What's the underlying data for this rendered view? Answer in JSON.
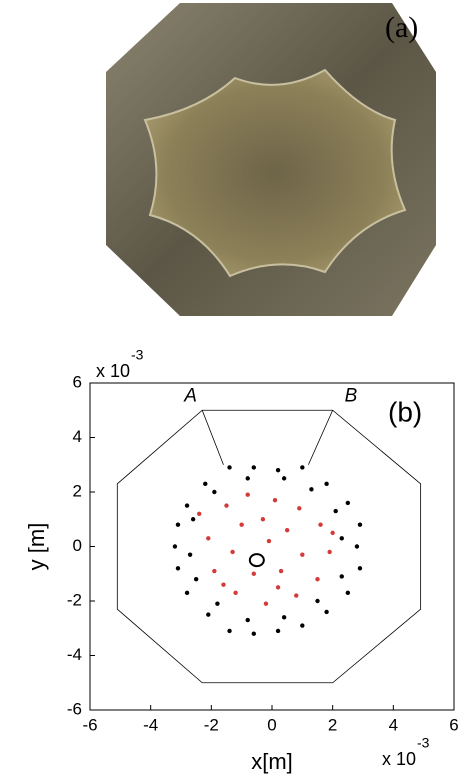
{
  "panel_a": {
    "label": "(a)"
  },
  "chart_data": {
    "type": "scatter",
    "panel_label": "(b)",
    "x_label": "x[m]",
    "y_label": "y [m]",
    "x_exponent": "x 10",
    "x_exponent_power": "-3",
    "y_exponent": "x 10",
    "y_exponent_power": "-3",
    "corner_labels": [
      "A",
      "B"
    ],
    "xlim": [
      -6,
      6
    ],
    "ylim": [
      -6,
      6
    ],
    "xticks": [
      -6,
      -4,
      -2,
      0,
      2,
      4,
      6
    ],
    "yticks": [
      -6,
      -4,
      -2,
      0,
      2,
      4,
      6
    ],
    "outline": {
      "x": [
        -2.3,
        2.0,
        4.9,
        4.9,
        2.0,
        -2.3,
        -5.1,
        -5.1
      ],
      "y": [
        5,
        5,
        2.3,
        -2.3,
        -5,
        -5,
        -2.3,
        2.3
      ]
    },
    "slits": [
      {
        "x": [
          -2.3,
          -1.6
        ],
        "y": [
          5,
          3.0
        ]
      },
      {
        "x": [
          2.0,
          1.2
        ],
        "y": [
          5,
          3.0
        ]
      }
    ],
    "origin_marker": {
      "x": -0.5,
      "y": -0.5
    },
    "series": [
      {
        "color": "#000000",
        "x": [
          2.8,
          2.9,
          2.5,
          1.8,
          1.0,
          0.2,
          -0.6,
          -1.4,
          -2.2,
          -2.8,
          -3.1,
          -3.2,
          -3.1,
          -2.8,
          -2.1,
          -1.4,
          -0.6,
          0.2,
          1.0,
          1.8,
          2.5,
          2.9,
          2.3,
          2.1,
          1.3,
          0.4,
          -0.8,
          -1.9,
          -2.6,
          -2.7,
          -2.5,
          -1.8,
          -0.8,
          0.4,
          1.5,
          2.3
        ],
        "values": [
          0.0,
          0.8,
          1.6,
          2.3,
          2.9,
          2.8,
          2.9,
          2.9,
          2.3,
          1.5,
          0.8,
          0.0,
          -0.8,
          -1.7,
          -2.5,
          -3.1,
          -3.2,
          -3.1,
          -2.9,
          -2.4,
          -1.7,
          -0.8,
          0.3,
          1.3,
          2.1,
          2.5,
          2.5,
          2.0,
          1.0,
          -0.3,
          -1.2,
          -2.1,
          -2.7,
          -2.6,
          -2.0,
          -1.1
        ]
      },
      {
        "color": "#d43a3a",
        "x": [
          -1.5,
          -0.8,
          0.1,
          0.9,
          1.6,
          1.9,
          1.5,
          0.8,
          -0.2,
          -1.2,
          -1.9,
          -2.1,
          -1.0,
          -0.3,
          0.5,
          1.0,
          0.3,
          -0.6,
          -1.3,
          -0.1,
          -2.4,
          2.0,
          0.2,
          -1.6
        ],
        "values": [
          1.5,
          1.9,
          1.7,
          1.4,
          0.8,
          -0.2,
          -1.2,
          -1.8,
          -2.1,
          -1.7,
          -0.9,
          0.3,
          0.8,
          1.0,
          0.6,
          -0.3,
          -0.9,
          -1.0,
          -0.2,
          0.2,
          1.2,
          0.5,
          -1.5,
          -1.4
        ]
      }
    ]
  }
}
